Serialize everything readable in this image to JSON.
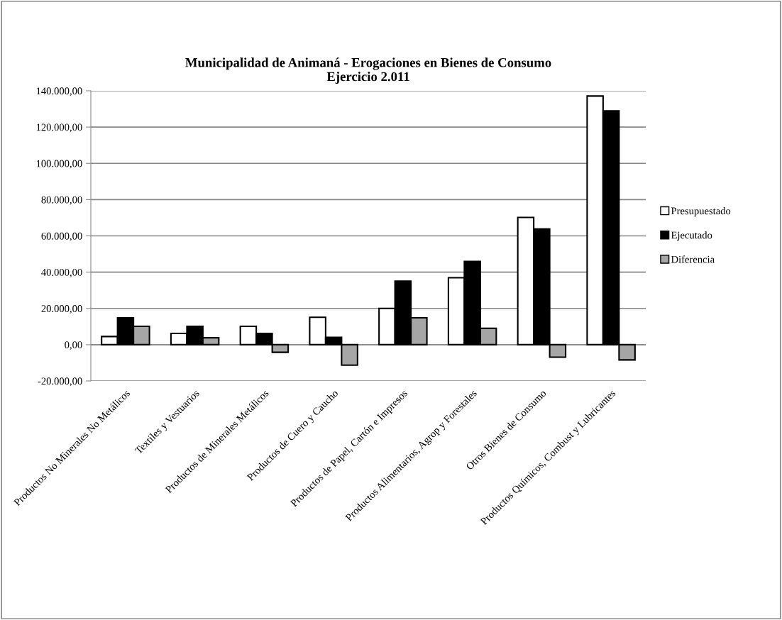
{
  "chart_data": {
    "type": "bar",
    "title": "Municipalidad de Animaná - Erogaciones en Bienes de Consumo\nEjercicio 2.011",
    "categories": [
      "Productos No Minerales No Metálicos",
      "Textiles y Vestuarios",
      "Productos de Minerales Metálicos",
      "Productos de Cuero y Caucho",
      "Productos de Papel, Cartón e Impresos",
      "Productos Alimentarios, Agrop y Forestales",
      "Otros Bienes de Consumo",
      "Productos Químicos, Combust y Lubricantes"
    ],
    "series": [
      {
        "name": "Presupuestado",
        "color": "#ffffff",
        "values": [
          4500,
          6200,
          10100,
          15100,
          20000,
          36900,
          70200,
          137100
        ]
      },
      {
        "name": "Ejecutado",
        "color": "#000000",
        "values": [
          14800,
          10100,
          6200,
          4000,
          35000,
          45900,
          63800,
          128900
        ]
      },
      {
        "name": "Diferencia",
        "color": "#a6a6a6",
        "values": [
          10100,
          3800,
          -4200,
          -11300,
          14800,
          9000,
          -6900,
          -8400
        ]
      }
    ],
    "ylim": [
      -20000,
      140000
    ],
    "yticks": [
      {
        "value": -20000,
        "label": "-20.000,00"
      },
      {
        "value": 0,
        "label": "0,00"
      },
      {
        "value": 20000,
        "label": "20.000,00"
      },
      {
        "value": 40000,
        "label": "40.000,00"
      },
      {
        "value": 60000,
        "label": "60.000,00"
      },
      {
        "value": 80000,
        "label": "80.000,00"
      },
      {
        "value": 100000,
        "label": "100.000,00"
      },
      {
        "value": 120000,
        "label": "120.000,00"
      },
      {
        "value": 140000,
        "label": "140.000,00"
      }
    ],
    "grid": "y",
    "legend": "right"
  }
}
